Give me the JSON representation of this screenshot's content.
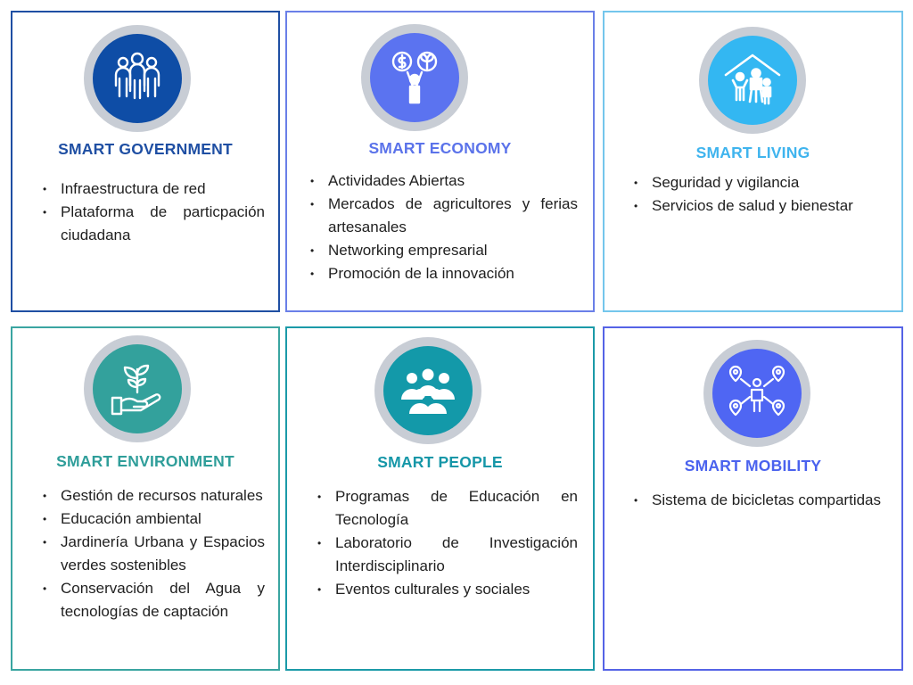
{
  "cards": [
    {
      "title": "SMART GOVERNMENT",
      "title_color": "#1f4fa3",
      "icon": "people-group-icon",
      "icon_bg": "#0e4da6",
      "items": [
        "Infraestructura de red",
        "Plataforma de particpación ciudadana"
      ]
    },
    {
      "title": "SMART ECONOMY",
      "title_color": "#5b73ea",
      "icon": "economy-growth-icon",
      "icon_bg": "#5b73f0",
      "items": [
        "Actividades Abiertas",
        "Mercados de agricultores y ferias artesanales",
        "Networking empresarial",
        "Promoción de la innovación"
      ]
    },
    {
      "title": "SMART LIVING",
      "title_color": "#3fb4ee",
      "icon": "family-home-icon",
      "icon_bg": "#33b7f2",
      "items": [
        "Seguridad y vigilancia",
        "Servicios de salud y bienestar"
      ]
    },
    {
      "title": "SMART ENVIRONMENT",
      "title_color": "#2f9e9a",
      "icon": "plant-hand-icon",
      "icon_bg": "#33a19c",
      "items": [
        "Gestión de recursos naturales",
        "Educación ambiental",
        "Jardinería Urbana y Espacios verdes sostenibles",
        "Conservación del Agua y tecnologías de captación"
      ]
    },
    {
      "title": "SMART PEOPLE",
      "title_color": "#1697a8",
      "icon": "crowd-icon",
      "icon_bg": "#1399a9",
      "items": [
        "Programas de Educación en Tecnología",
        "Laboratorio de Investigación Interdisciplinario",
        " Eventos culturales y sociales"
      ]
    },
    {
      "title": "SMART MOBILITY",
      "title_color": "#4a62ee",
      "icon": "location-network-icon",
      "icon_bg": "#4f66f3",
      "items": [
        "Sistema de bicicletas compartidas"
      ]
    }
  ]
}
